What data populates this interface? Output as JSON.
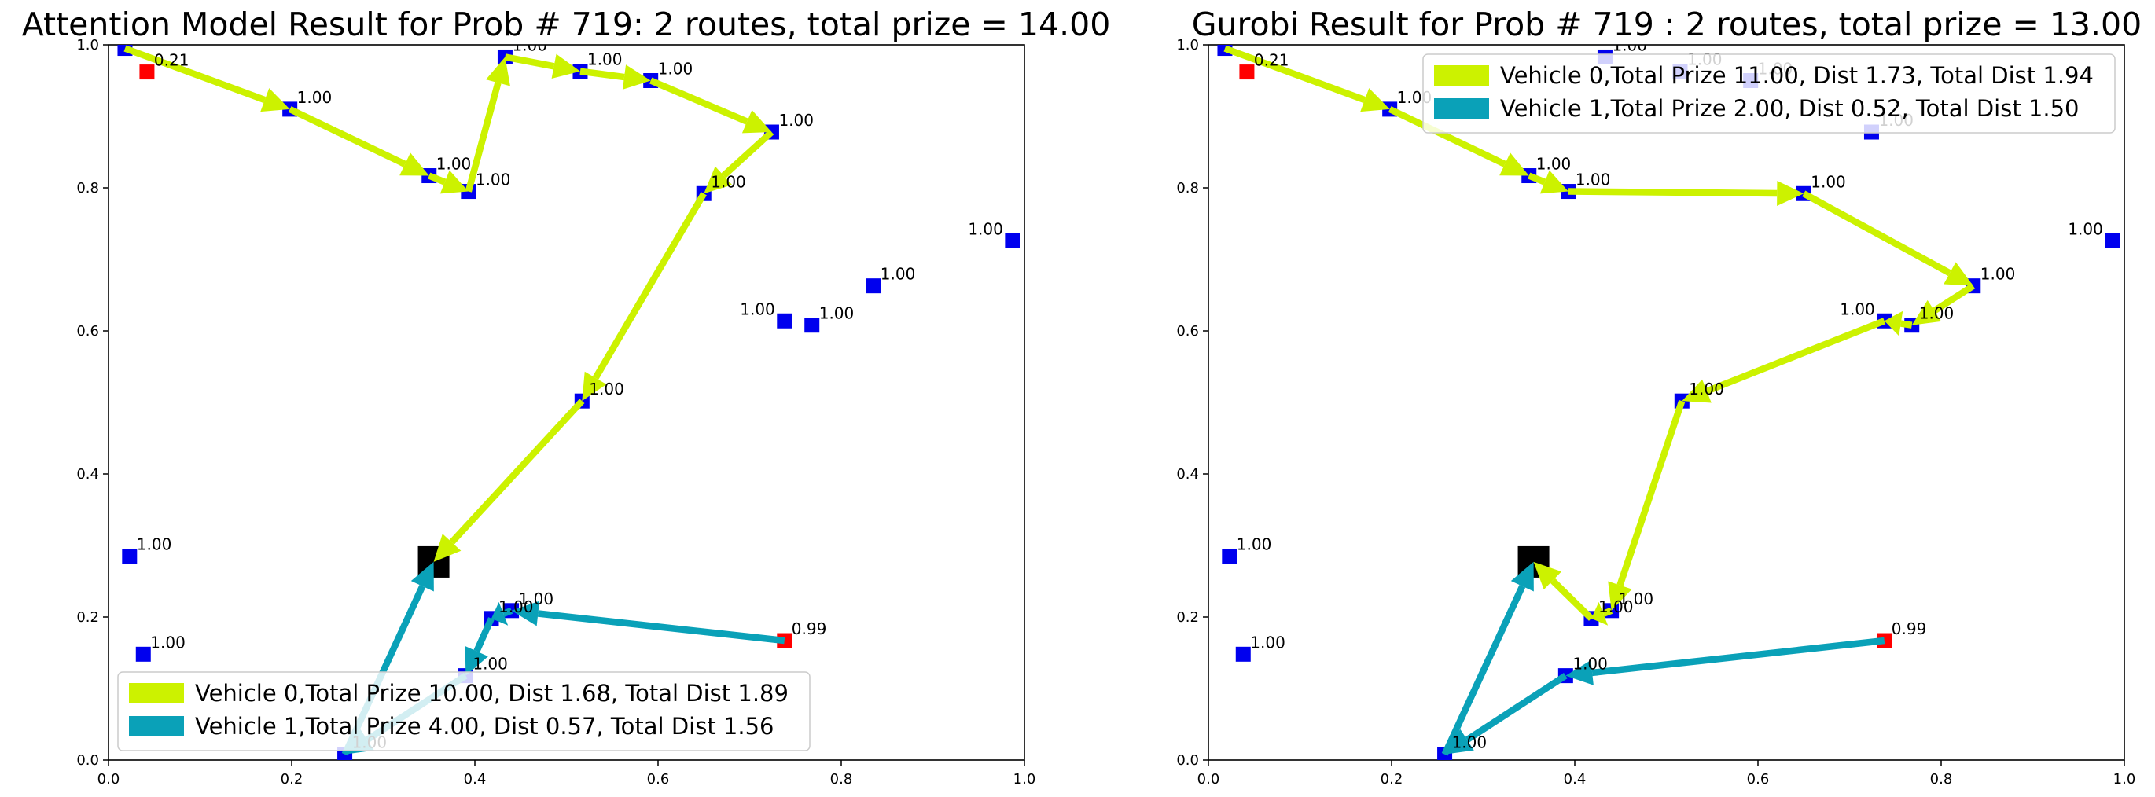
{
  "colors": {
    "vehicle0": "#ccf200",
    "vehicle1": "#0aa1b8",
    "node": "#0000ee",
    "red_node": "#ff0000",
    "depot": "#000000"
  },
  "chart_data": [
    {
      "type": "scatter",
      "title": "Attention Model Result for Prob # 719: 2 routes, total prize = 14.00",
      "xlim": [
        0,
        1
      ],
      "ylim": [
        0,
        1
      ],
      "x_ticks": [
        "0.0",
        "0.2",
        "0.4",
        "0.6",
        "0.8",
        "1.0"
      ],
      "y_ticks": [
        "0.0",
        "0.2",
        "0.4",
        "0.6",
        "0.8",
        "1.0"
      ],
      "grid": false,
      "legend_position": "lower-left",
      "depot": [
        0.355,
        0.277
      ],
      "nodes": [
        {
          "x": 0.018,
          "y": 0.995,
          "label": "1.00",
          "red": false
        },
        {
          "x": 0.042,
          "y": 0.962,
          "label": "0.21",
          "red": true
        },
        {
          "x": 0.198,
          "y": 0.91,
          "label": "1.00",
          "red": false
        },
        {
          "x": 0.35,
          "y": 0.817,
          "label": "1.00",
          "red": false
        },
        {
          "x": 0.393,
          "y": 0.795,
          "label": "1.00",
          "red": false
        },
        {
          "x": 0.433,
          "y": 0.983,
          "label": "1.00",
          "red": false
        },
        {
          "x": 0.515,
          "y": 0.963,
          "label": "1.00",
          "red": false
        },
        {
          "x": 0.592,
          "y": 0.95,
          "label": "1.00",
          "red": false
        },
        {
          "x": 0.724,
          "y": 0.878,
          "label": "1.00",
          "red": false
        },
        {
          "x": 0.65,
          "y": 0.792,
          "label": "1.00",
          "red": false
        },
        {
          "x": 0.987,
          "y": 0.726,
          "label": "1.00",
          "red": false
        },
        {
          "x": 0.835,
          "y": 0.663,
          "label": "1.00",
          "red": false
        },
        {
          "x": 0.738,
          "y": 0.614,
          "label": "1.00",
          "red": false
        },
        {
          "x": 0.768,
          "y": 0.608,
          "label": "1.00",
          "red": false
        },
        {
          "x": 0.517,
          "y": 0.502,
          "label": "1.00",
          "red": false
        },
        {
          "x": 0.023,
          "y": 0.285,
          "label": "1.00",
          "red": false
        },
        {
          "x": 0.038,
          "y": 0.148,
          "label": "1.00",
          "red": false
        },
        {
          "x": 0.44,
          "y": 0.209,
          "label": "1.00",
          "red": false
        },
        {
          "x": 0.418,
          "y": 0.198,
          "label": "1.00",
          "red": false
        },
        {
          "x": 0.738,
          "y": 0.167,
          "label": "0.99",
          "red": true
        },
        {
          "x": 0.39,
          "y": 0.118,
          "label": "1.00",
          "red": false
        },
        {
          "x": 0.258,
          "y": 0.008,
          "label": "1.00",
          "red": false
        }
      ],
      "series": [
        {
          "name": "Vehicle 0,Total Prize 10.00, Dist 1.68, Total Dist 1.89",
          "color": "#ccf200",
          "route": [
            [
              0.018,
              0.995
            ],
            [
              0.198,
              0.91
            ],
            [
              0.35,
              0.817
            ],
            [
              0.393,
              0.795
            ],
            [
              0.433,
              0.983
            ],
            [
              0.515,
              0.963
            ],
            [
              0.592,
              0.95
            ],
            [
              0.724,
              0.878
            ],
            [
              0.65,
              0.792
            ],
            [
              0.517,
              0.502
            ],
            [
              0.355,
              0.277
            ]
          ]
        },
        {
          "name": "Vehicle 1,Total Prize 4.00, Dist 0.57, Total Dist 1.56",
          "color": "#0aa1b8",
          "route": [
            [
              0.738,
              0.167
            ],
            [
              0.44,
              0.209
            ],
            [
              0.418,
              0.198
            ],
            [
              0.39,
              0.118
            ],
            [
              0.258,
              0.008
            ],
            [
              0.355,
              0.277
            ]
          ]
        }
      ]
    },
    {
      "type": "scatter",
      "title": "Gurobi Result for Prob # 719 : 2 routes, total prize = 13.00",
      "xlim": [
        0,
        1
      ],
      "ylim": [
        0,
        1
      ],
      "x_ticks": [
        "0.0",
        "0.2",
        "0.4",
        "0.6",
        "0.8",
        "1.0"
      ],
      "y_ticks": [
        "0.0",
        "0.2",
        "0.4",
        "0.6",
        "0.8",
        "1.0"
      ],
      "grid": false,
      "legend_position": "upper-right",
      "depot": [
        0.355,
        0.277
      ],
      "nodes": [
        {
          "x": 0.018,
          "y": 0.995,
          "label": "1.00",
          "red": false
        },
        {
          "x": 0.042,
          "y": 0.962,
          "label": "0.21",
          "red": true
        },
        {
          "x": 0.198,
          "y": 0.91,
          "label": "1.00",
          "red": false
        },
        {
          "x": 0.35,
          "y": 0.817,
          "label": "1.00",
          "red": false
        },
        {
          "x": 0.393,
          "y": 0.795,
          "label": "1.00",
          "red": false
        },
        {
          "x": 0.433,
          "y": 0.983,
          "label": "1.00",
          "red": false
        },
        {
          "x": 0.515,
          "y": 0.963,
          "label": "1.00",
          "red": false
        },
        {
          "x": 0.592,
          "y": 0.95,
          "label": "1.00",
          "red": false
        },
        {
          "x": 0.724,
          "y": 0.878,
          "label": "1.00",
          "red": false
        },
        {
          "x": 0.65,
          "y": 0.792,
          "label": "1.00",
          "red": false
        },
        {
          "x": 0.987,
          "y": 0.726,
          "label": "1.00",
          "red": false
        },
        {
          "x": 0.835,
          "y": 0.663,
          "label": "1.00",
          "red": false
        },
        {
          "x": 0.738,
          "y": 0.614,
          "label": "1.00",
          "red": false
        },
        {
          "x": 0.768,
          "y": 0.608,
          "label": "1.00",
          "red": false
        },
        {
          "x": 0.517,
          "y": 0.502,
          "label": "1.00",
          "red": false
        },
        {
          "x": 0.023,
          "y": 0.285,
          "label": "1.00",
          "red": false
        },
        {
          "x": 0.038,
          "y": 0.148,
          "label": "1.00",
          "red": false
        },
        {
          "x": 0.44,
          "y": 0.209,
          "label": "1.00",
          "red": false
        },
        {
          "x": 0.418,
          "y": 0.198,
          "label": "1.00",
          "red": false
        },
        {
          "x": 0.738,
          "y": 0.167,
          "label": "0.99",
          "red": true
        },
        {
          "x": 0.39,
          "y": 0.118,
          "label": "1.00",
          "red": false
        },
        {
          "x": 0.258,
          "y": 0.008,
          "label": "1.00",
          "red": false
        }
      ],
      "series": [
        {
          "name": "Vehicle 0,Total Prize 11.00, Dist 1.73, Total Dist 1.94",
          "color": "#ccf200",
          "route": [
            [
              0.018,
              0.995
            ],
            [
              0.198,
              0.91
            ],
            [
              0.35,
              0.817
            ],
            [
              0.393,
              0.795
            ],
            [
              0.65,
              0.792
            ],
            [
              0.835,
              0.663
            ],
            [
              0.768,
              0.608
            ],
            [
              0.738,
              0.614
            ],
            [
              0.517,
              0.502
            ],
            [
              0.44,
              0.209
            ],
            [
              0.418,
              0.198
            ],
            [
              0.355,
              0.277
            ]
          ]
        },
        {
          "name": "Vehicle 1,Total Prize 2.00, Dist 0.52, Total Dist 1.50",
          "color": "#0aa1b8",
          "route": [
            [
              0.738,
              0.167
            ],
            [
              0.39,
              0.118
            ],
            [
              0.258,
              0.008
            ],
            [
              0.355,
              0.277
            ]
          ]
        }
      ]
    }
  ]
}
